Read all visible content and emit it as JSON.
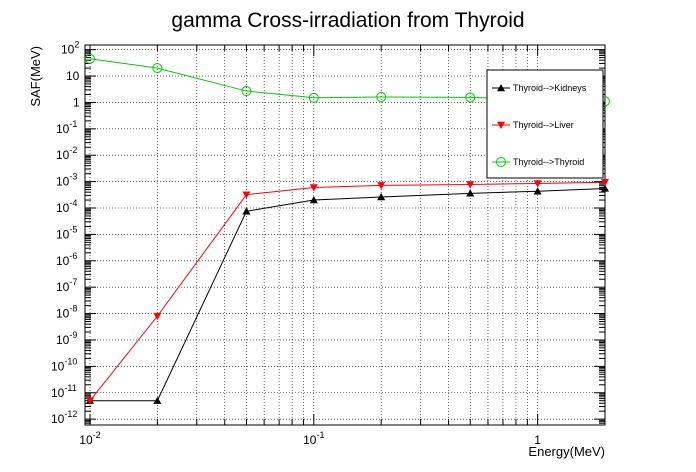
{
  "chart_data": {
    "type": "line",
    "title": "gamma Cross-irradiation from Thyroid",
    "xlabel": "Energy(MeV)",
    "ylabel": "SAF(MeV)",
    "xscale": "log",
    "yscale": "log",
    "xlim": [
      0.0095,
      2
    ],
    "ylim": [
      6e-13,
      150
    ],
    "grid": true,
    "legend_position": "top-right",
    "x_ticks": [
      {
        "value": 0.01,
        "base": "10",
        "exp": "-2"
      },
      {
        "value": 0.1,
        "base": "10",
        "exp": "-1"
      },
      {
        "value": 1,
        "base": "1",
        "exp": ""
      }
    ],
    "y_ticks": [
      {
        "value": 100,
        "base": "10",
        "exp": "2"
      },
      {
        "value": 10,
        "base": "10",
        "exp": ""
      },
      {
        "value": 1,
        "base": "1",
        "exp": ""
      },
      {
        "value": 0.1,
        "base": "10",
        "exp": "-1"
      },
      {
        "value": 0.01,
        "base": "10",
        "exp": "-2"
      },
      {
        "value": 0.001,
        "base": "10",
        "exp": "-3"
      },
      {
        "value": 0.0001,
        "base": "10",
        "exp": "-4"
      },
      {
        "value": 1e-05,
        "base": "10",
        "exp": "-5"
      },
      {
        "value": 1e-06,
        "base": "10",
        "exp": "-6"
      },
      {
        "value": 1e-07,
        "base": "10",
        "exp": "-7"
      },
      {
        "value": 1e-08,
        "base": "10",
        "exp": "-8"
      },
      {
        "value": 1e-09,
        "base": "10",
        "exp": "-9"
      },
      {
        "value": 1e-10,
        "base": "10",
        "exp": "-10"
      },
      {
        "value": 1e-11,
        "base": "10",
        "exp": "-11"
      },
      {
        "value": 1e-12,
        "base": "10",
        "exp": "-12"
      }
    ],
    "series": [
      {
        "name": "Thyroid-->Kidneys",
        "color": "#000000",
        "marker": "triangle-up",
        "x": [
          0.01,
          0.02,
          0.05,
          0.1,
          0.2,
          0.5,
          1,
          2
        ],
        "y": [
          5e-12,
          5e-12,
          7.5e-05,
          0.0002,
          0.00026,
          0.00036,
          0.00043,
          0.00055
        ]
      },
      {
        "name": "Thyroid-->Liver",
        "color": "#ff0000",
        "marker": "triangle-down",
        "x": [
          0.01,
          0.02,
          0.05,
          0.1,
          0.2,
          0.5,
          1,
          2
        ],
        "y": [
          5e-12,
          8e-09,
          0.00032,
          0.0006,
          0.00072,
          0.00078,
          0.00085,
          0.00095
        ]
      },
      {
        "name": "Thyroid-->Thyroid",
        "color": "#00cc00",
        "marker": "circle-open",
        "x": [
          0.01,
          0.02,
          0.05,
          0.1,
          0.2,
          0.5,
          2
        ],
        "y": [
          45,
          20,
          2.7,
          1.5,
          1.6,
          1.55,
          1.1
        ]
      }
    ]
  }
}
